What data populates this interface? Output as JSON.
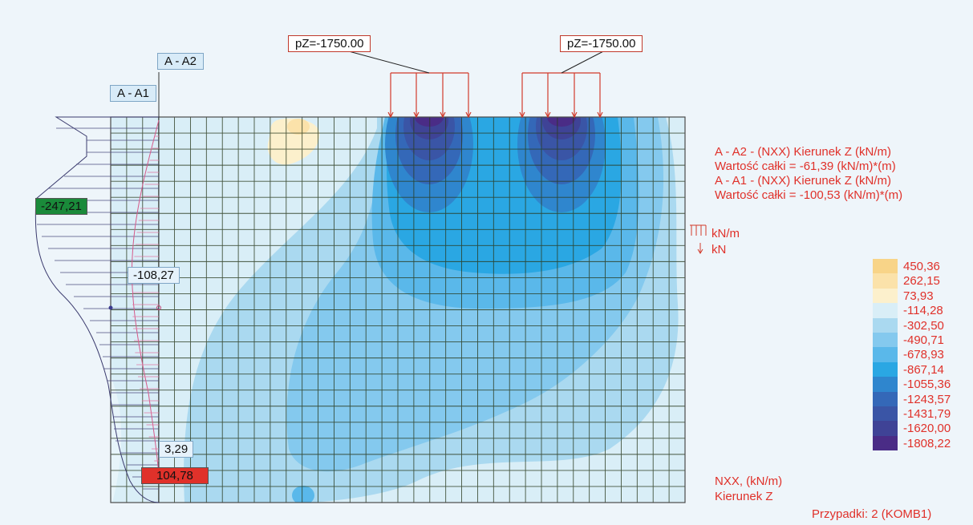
{
  "sections": {
    "a1": "A - A1",
    "a2": "A - A2"
  },
  "loads": {
    "left": "pZ=-1750.00",
    "right": "pZ=-1750.00"
  },
  "diagram_values": {
    "max_neg": "-247,21",
    "mid": "-108,27",
    "small": "3,29",
    "max_pos": "104,78"
  },
  "info": {
    "line1": "A - A2 - (NXX) Kierunek Z (kN/m)",
    "line2": "Wartość całki = -61,39 (kN/m)*(m)",
    "line3": "A - A1 - (NXX) Kierunek Z (kN/m)",
    "line4": "Wartość całki = -100,53 (kN/m)*(m)"
  },
  "units": {
    "dist": "kN/m",
    "point": "kN"
  },
  "legend": {
    "values": [
      "450,36",
      "262,15",
      "73,93",
      "-114,28",
      "-302,50",
      "-490,71",
      "-678,93",
      "-867,14",
      "-1055,36",
      "-1243,57",
      "-1431,79",
      "-1620,00",
      "-1808,22"
    ],
    "colors": [
      "#f8d488",
      "#fbe2aa",
      "#fcf0cc",
      "#d9eef7",
      "#aad9f0",
      "#84c9ee",
      "#5ab8ea",
      "#2aa7e3",
      "#2f86ce",
      "#3468b8",
      "#3a55a6",
      "#3f4396",
      "#4a2c86"
    ]
  },
  "footer": {
    "quantity": "NXX, (kN/m)",
    "direction": "Kierunek Z",
    "cases": "Przypadki: 2 (KOMB1)"
  }
}
